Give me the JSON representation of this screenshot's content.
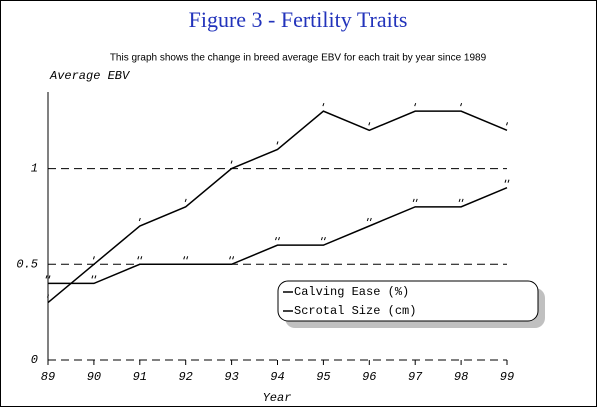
{
  "chart_data": {
    "type": "line",
    "title": "Figure 3 - Fertility Traits",
    "subtitle": "This graph shows the change in breed average EBV for each trait by year since 1989",
    "y_label": "Average EBV",
    "x_label": "Year",
    "categories": [
      "89",
      "90",
      "91",
      "92",
      "93",
      "94",
      "95",
      "96",
      "97",
      "98",
      "99"
    ],
    "series": [
      {
        "name": "Calving Ease (%)",
        "color": "#000000",
        "values": [
          0.3,
          0.5,
          0.7,
          0.8,
          1.0,
          1.1,
          1.3,
          1.2,
          1.3,
          1.3,
          1.2
        ]
      },
      {
        "name": "Scrotal Size (cm)",
        "color": "#000000",
        "values": [
          0.4,
          0.4,
          0.5,
          0.5,
          0.5,
          0.6,
          0.6,
          0.7,
          0.8,
          0.8,
          0.9
        ]
      }
    ],
    "ylim": [
      0,
      1.4
    ],
    "yticks": [
      0,
      0.5,
      1
    ],
    "grid": true
  }
}
